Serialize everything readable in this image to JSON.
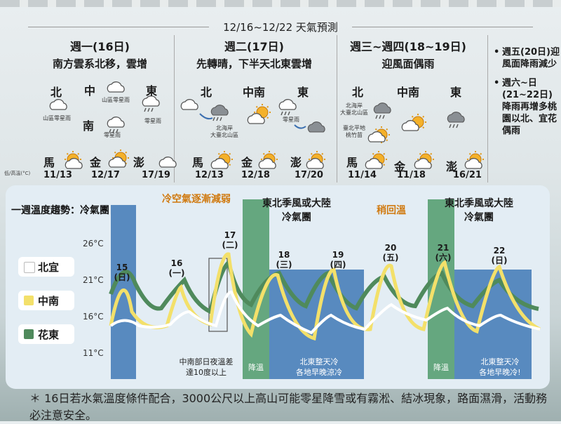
{
  "forecast": {
    "title": "12/16~12/22 天氣預測",
    "mon": {
      "day": "週一(16日)",
      "desc": "南方雲系北移，雲增",
      "north": "北",
      "mid": "中",
      "east": "東",
      "south": "南",
      "north_note": "山區零星雨",
      "mid_note": "山區零星雨",
      "east_note": "零星雨",
      "south_note": "零星雨",
      "ma": "馬",
      "jin": "金",
      "peng": "澎",
      "ma_r": "11/13",
      "jin_r": "12/17",
      "peng_r": "17/19"
    },
    "tue": {
      "day": "週二(17日)",
      "desc": "先轉晴，下半天北東雲增",
      "north": "北",
      "mid": "中南",
      "east": "東",
      "north_note": "北海岸\n大臺北山區",
      "east_note": "零星雨",
      "ma": "馬",
      "jin": "金",
      "peng": "澎",
      "ma_r": "12/13",
      "jin_r": "12/18",
      "peng_r": "17/20"
    },
    "wed": {
      "day": "週三~週四(18~19日)",
      "desc": "迎風面偶雨",
      "north": "北",
      "mid": "中南",
      "east": "東",
      "north_note1": "北海岸\n大臺北山區",
      "north_note2": "臺北平地\n桃竹苗",
      "ma": "馬",
      "jin": "金",
      "peng": "澎",
      "ma_r": "11/14",
      "jin_r": "11/18",
      "peng_r": "16/21"
    },
    "legend_note": "低/高溫(°C)",
    "side": [
      "週五(20日)迎風面降雨減少",
      "週六~日(21~22日)降雨再增多桃園以北、宜花偶雨"
    ]
  },
  "panel": {
    "heading": "一週溫度趨勢：",
    "h1": "冷氣團",
    "h2": "冷空氣逐漸減弱",
    "h3": "東北季風或大陸冷氣團",
    "h4": "稍回溫",
    "h5": "東北季風或大陸冷氣團",
    "y": [
      "26°C",
      "21°C",
      "16°C",
      "11°C"
    ],
    "legend": [
      "北宜",
      "中南",
      "花東"
    ],
    "days": [
      {
        "d": "15",
        "w": "(日)"
      },
      {
        "d": "16",
        "w": "(一)"
      },
      {
        "d": "17",
        "w": "(二)"
      },
      {
        "d": "18",
        "w": "(三)"
      },
      {
        "d": "19",
        "w": "(四)"
      },
      {
        "d": "20",
        "w": "(五)"
      },
      {
        "d": "21",
        "w": "(六)"
      },
      {
        "d": "22",
        "w": "(日)"
      }
    ],
    "note1": "中南部日夜溫差\n達10度以上",
    "note2": "降溫",
    "note3": "北東整天冷\n各地早晚涼冷",
    "note4": "降溫",
    "note5": "北東整天冷\n各地早晚冷!"
  },
  "footnote": "＊ 16日若水氣溫度條件配合，3000公尺以上高山可能零星降雪或有霧淞、結冰現象，路面濕滑，活動務必注意安全。",
  "colors": {
    "north": "#ffffff",
    "central": "#f3e06a",
    "east": "#4f8a5c",
    "cold": "#3f78b5",
    "warm": "#4f9a6a"
  }
}
